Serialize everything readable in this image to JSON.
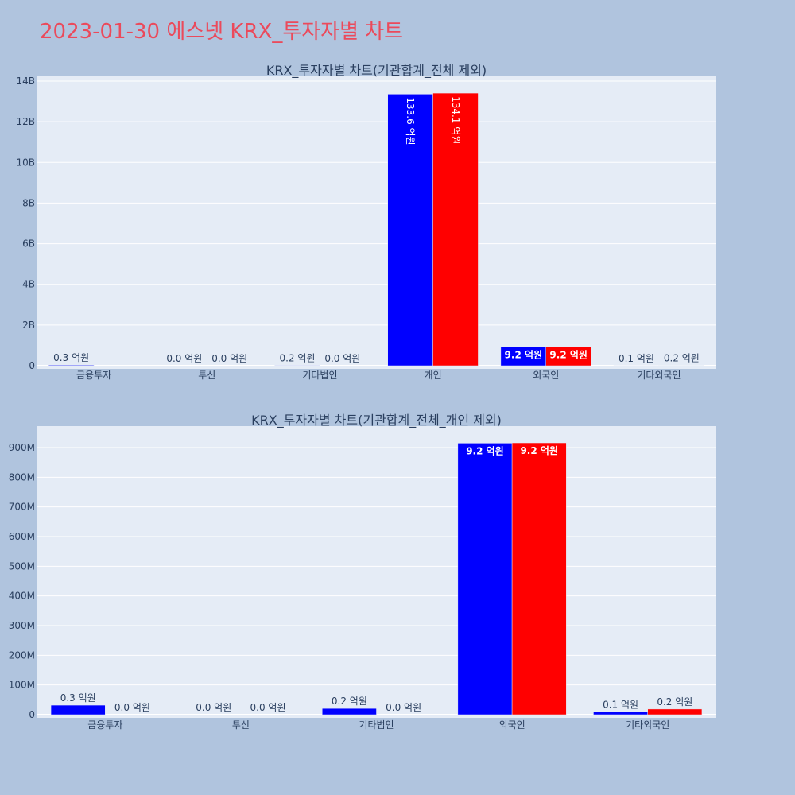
{
  "page": {
    "title": "2023-01-30 에스넷 KRX_투자자별 차트"
  },
  "colors": {
    "background": "#B0C4DE",
    "plot_bg": "#E5ECF6",
    "grid": "#FFFFFF",
    "title": "#EB4A5B",
    "text": "#2A3F5F",
    "inside_label": "#FFFFFF",
    "series_blue": "#0000FF",
    "series_red": "#FF0000"
  },
  "chart_data": [
    {
      "type": "bar",
      "title": "KRX_투자자별 차트(기관합계_전체 제외)",
      "xlabel": "",
      "ylabel": "",
      "categories": [
        "금융투자",
        "투신",
        "기타법인",
        "개인",
        "외국인",
        "기타외국인"
      ],
      "series": [
        {
          "color": "#0000FF",
          "values": [
            32000000,
            0,
            21000000,
            13360000000,
            915000000,
            9000000
          ],
          "labels": [
            "0.3 억원",
            "0.0 억원",
            "0.2 억원",
            "133.6 억원",
            "9.2 억원",
            "0.1 억원"
          ]
        },
        {
          "color": "#FF0000",
          "values": [
            0,
            0,
            0,
            13410000000,
            916000000,
            19000000
          ],
          "labels": [
            "",
            "0.0 억원",
            "0.0 억원",
            "134.1 억원",
            "9.2 억원",
            "0.2 억원"
          ]
        }
      ],
      "yticks": [
        0,
        2000000000,
        4000000000,
        6000000000,
        8000000000,
        10000000000,
        12000000000,
        14000000000
      ],
      "ytick_labels": [
        "0",
        "2B",
        "4B",
        "6B",
        "8B",
        "10B",
        "12B",
        "14B"
      ],
      "ylim": [
        -156000000,
        14234000000
      ],
      "grid": true,
      "legend": "none"
    },
    {
      "type": "bar",
      "title": "KRX_투자자별 차트(기관합계_전체_개인 제외)",
      "xlabel": "",
      "ylabel": "",
      "categories": [
        "금융투자",
        "투신",
        "기타법인",
        "외국인",
        "기타외국인"
      ],
      "series": [
        {
          "color": "#0000FF",
          "values": [
            32000000,
            0,
            21000000,
            915000000,
            9000000
          ],
          "labels": [
            "0.3 억원",
            "0.0 억원",
            "0.2 억원",
            "9.2 억원",
            "0.1 억원"
          ]
        },
        {
          "color": "#FF0000",
          "values": [
            0,
            0,
            0,
            916000000,
            19000000
          ],
          "labels": [
            "0.0 억원",
            "0.0 억원",
            "0.0 억원",
            "9.2 억원",
            "0.2 억원"
          ]
        }
      ],
      "yticks": [
        0,
        100000000,
        200000000,
        300000000,
        400000000,
        500000000,
        600000000,
        700000000,
        800000000,
        900000000
      ],
      "ytick_labels": [
        "0",
        "100M",
        "200M",
        "300M",
        "400M",
        "500M",
        "600M",
        "700M",
        "800M",
        "900M"
      ],
      "ylim": [
        -10700000,
        972300000
      ],
      "grid": true,
      "legend": "none"
    }
  ]
}
